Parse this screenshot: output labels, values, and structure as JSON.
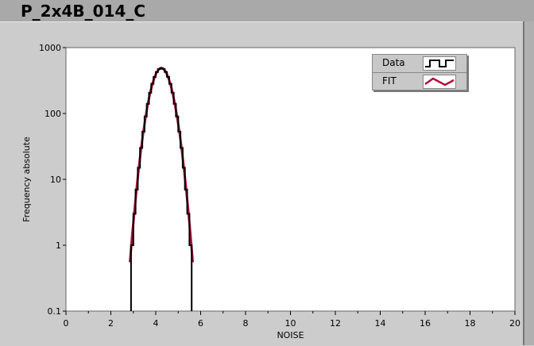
{
  "title": "P_2x4B_014_C",
  "chart_data": {
    "type": "line",
    "xlabel": "NOISE",
    "ylabel": "Frequency absolute",
    "xlim": [
      0,
      20
    ],
    "ylim": [
      0.1,
      1000
    ],
    "yscale": "log",
    "grid": false,
    "legend_position": "top-right",
    "xticks": [
      "0",
      "2",
      "4",
      "6",
      "8",
      "10",
      "12",
      "14",
      "16",
      "18",
      "20"
    ],
    "yticks": [
      "0.1",
      "1",
      "10",
      "100",
      "1000"
    ],
    "series": [
      {
        "name": "Data",
        "style": "step",
        "color": "#000000",
        "x": [
          2.95,
          3.05,
          3.15,
          3.25,
          3.35,
          3.45,
          3.55,
          3.65,
          3.75,
          3.85,
          3.95,
          4.05,
          4.15,
          4.25,
          4.35,
          4.45,
          4.55,
          4.65,
          4.75,
          4.85,
          4.95,
          5.05,
          5.15,
          5.25,
          5.35,
          5.45,
          5.55
        ],
        "y": [
          1,
          3,
          7,
          15,
          30,
          53,
          90,
          140,
          206,
          282,
          359,
          427,
          473,
          490,
          473,
          427,
          359,
          282,
          206,
          140,
          90,
          53,
          30,
          15,
          7,
          3,
          1
        ]
      },
      {
        "name": "FIT",
        "style": "line",
        "color": "#b0103a",
        "x": [
          2.85,
          2.95,
          3.05,
          3.15,
          3.25,
          3.35,
          3.45,
          3.55,
          3.65,
          3.75,
          3.85,
          3.95,
          4.05,
          4.15,
          4.25,
          4.35,
          4.45,
          4.55,
          4.65,
          4.75,
          4.85,
          4.95,
          5.05,
          5.15,
          5.25,
          5.35,
          5.45,
          5.55,
          5.65
        ],
        "y": [
          0.55,
          1.4,
          3.3,
          7.4,
          15.4,
          29.7,
          53.4,
          89.7,
          140.6,
          205.8,
          281.8,
          358.7,
          426.8,
          473.3,
          490,
          473.3,
          426.8,
          358.7,
          281.8,
          205.8,
          140.6,
          89.7,
          53.4,
          29.7,
          15.4,
          7.4,
          3.3,
          1.4,
          0.55
        ]
      }
    ]
  }
}
